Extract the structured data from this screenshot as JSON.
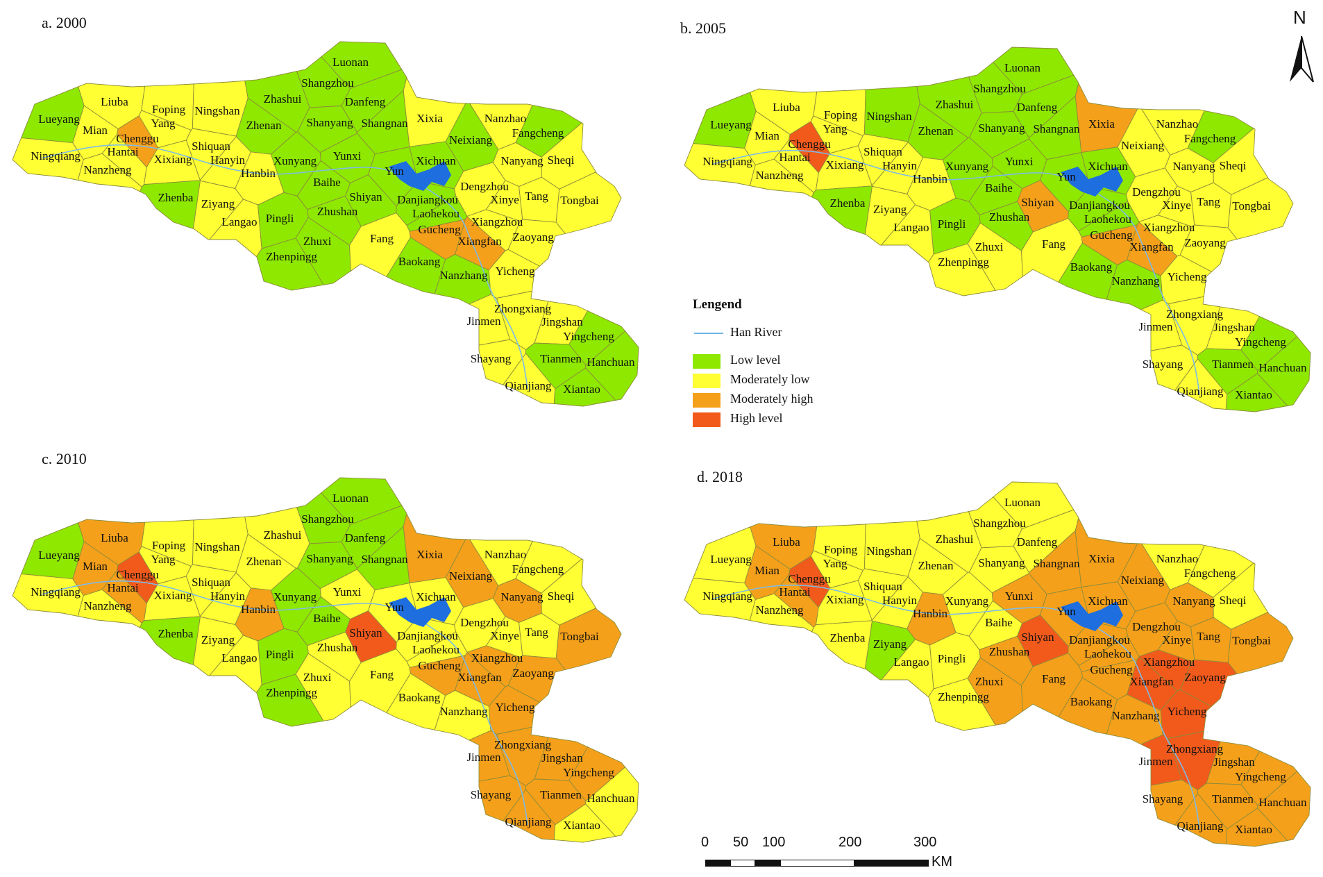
{
  "legend": {
    "title": "Lengend",
    "river_label": "Han River",
    "items": [
      {
        "label": "Low level",
        "color": "#8ee800"
      },
      {
        "label": "Moderately low",
        "color": "#ffff33"
      },
      {
        "label": "Moderately high",
        "color": "#f5a01a"
      },
      {
        "label": "High level",
        "color": "#f25a1c"
      }
    ]
  },
  "colors": {
    "border": "#8c8c3a",
    "river": "#7dbbe8",
    "reservoir": "#1e6ee0"
  },
  "north_arrow": {
    "label": "N"
  },
  "scale_bar": {
    "ticks": [
      "0",
      "50",
      "100",
      "200",
      "300"
    ],
    "unit": "KM"
  },
  "counties": [
    "Luonan",
    "Shangzhou",
    "Zhashui",
    "Danfeng",
    "Liuba",
    "Foping",
    "Ningshan",
    "Lueyang",
    "Mian",
    "Chenggu",
    "Yang",
    "Zhenan",
    "Shanyang",
    "Shangnan",
    "Xixia",
    "Nanzhao",
    "Fangcheng",
    "Neixiang",
    "Ningqiang",
    "Hantai",
    "Shiquan",
    "Xixiang",
    "Hanyin",
    "Yunxi",
    "Xichuan",
    "Nanyang",
    "Sheqi",
    "Nanzheng",
    "Hanbin",
    "Xunyang",
    "Baihe",
    "Yun",
    "Dengzhou",
    "Zhenba",
    "Ziyang",
    "Shiyan",
    "Danjiangkou",
    "Xinye",
    "Tang",
    "Tongbai",
    "Langao",
    "Pingli",
    "Zhushan",
    "Laohekou",
    "Xiangzhou",
    "Gucheng",
    "Zhuxi",
    "Fang",
    "Xiangfan",
    "Zaoyang",
    "Zhenpingg",
    "Baokang",
    "Nanzhang",
    "Yicheng",
    "Zhongxiang",
    "Jinmen",
    "Jingshan",
    "Yingcheng",
    "Shayang",
    "Tianmen",
    "Hanchuan",
    "Qianjiang",
    "Xiantao"
  ],
  "panels": [
    {
      "title": "a. 2000",
      "levels": {
        "Luonan": "L",
        "Shangzhou": "L",
        "Zhashui": "L",
        "Danfeng": "L",
        "Liuba": "ML",
        "Foping": "ML",
        "Ningshan": "ML",
        "Lueyang": "L",
        "Mian": "ML",
        "Chenggu": "MH",
        "Yang": "ML",
        "Zhenan": "L",
        "Shanyang": "L",
        "Shangnan": "L",
        "Xixia": "ML",
        "Nanzhao": "ML",
        "Fangcheng": "L",
        "Neixiang": "L",
        "Ningqiang": "ML",
        "Hantai": "ML",
        "Shiquan": "ML",
        "Xixiang": "ML",
        "Hanyin": "ML",
        "Yunxi": "L",
        "Xichuan": "L",
        "Nanyang": "ML",
        "Sheqi": "ML",
        "Nanzheng": "ML",
        "Hanbin": "ML",
        "Xunyang": "L",
        "Baihe": "L",
        "Yun": "L",
        "Dengzhou": "ML",
        "Zhenba": "L",
        "Ziyang": "ML",
        "Shiyan": "L",
        "Danjiangkou": "L",
        "Xinye": "ML",
        "Tang": "ML",
        "Tongbai": "ML",
        "Langao": "ML",
        "Pingli": "L",
        "Zhushan": "L",
        "Laohekou": "L",
        "Xiangzhou": "ML",
        "Gucheng": "MH",
        "Zhuxi": "L",
        "Fang": "ML",
        "Xiangfan": "MH",
        "Zaoyang": "ML",
        "Zhenpingg": "L",
        "Baokang": "L",
        "Nanzhang": "L",
        "Yicheng": "ML",
        "Zhongxiang": "ML",
        "Jinmen": "ML",
        "Jingshan": "ML",
        "Yingcheng": "L",
        "Shayang": "ML",
        "Tianmen": "L",
        "Hanchuan": "L",
        "Qianjiang": "ML",
        "Xiantao": "L"
      }
    },
    {
      "title": "b. 2005",
      "levels": {
        "Luonan": "L",
        "Shangzhou": "L",
        "Zhashui": "L",
        "Danfeng": "L",
        "Liuba": "ML",
        "Foping": "ML",
        "Ningshan": "L",
        "Lueyang": "L",
        "Mian": "ML",
        "Chenggu": "HL",
        "Yang": "ML",
        "Zhenan": "L",
        "Shanyang": "L",
        "Shangnan": "L",
        "Xixia": "MH",
        "Nanzhao": "ML",
        "Fangcheng": "L",
        "Neixiang": "ML",
        "Ningqiang": "ML",
        "Hantai": "ML",
        "Shiquan": "ML",
        "Xixiang": "ML",
        "Hanyin": "ML",
        "Yunxi": "L",
        "Xichuan": "L",
        "Nanyang": "ML",
        "Sheqi": "ML",
        "Nanzheng": "ML",
        "Hanbin": "ML",
        "Xunyang": "L",
        "Baihe": "L",
        "Yun": "L",
        "Dengzhou": "ML",
        "Zhenba": "L",
        "Ziyang": "ML",
        "Shiyan": "MH",
        "Danjiangkou": "L",
        "Xinye": "ML",
        "Tang": "ML",
        "Tongbai": "ML",
        "Langao": "ML",
        "Pingli": "L",
        "Zhushan": "L",
        "Laohekou": "L",
        "Xiangzhou": "ML",
        "Gucheng": "MH",
        "Zhuxi": "ML",
        "Fang": "ML",
        "Xiangfan": "MH",
        "Zaoyang": "ML",
        "Zhenpingg": "ML",
        "Baokang": "L",
        "Nanzhang": "L",
        "Yicheng": "ML",
        "Zhongxiang": "ML",
        "Jinmen": "ML",
        "Jingshan": "ML",
        "Yingcheng": "L",
        "Shayang": "ML",
        "Tianmen": "L",
        "Hanchuan": "L",
        "Qianjiang": "ML",
        "Xiantao": "L"
      }
    },
    {
      "title": "c. 2010",
      "levels": {
        "Luonan": "L",
        "Shangzhou": "L",
        "Zhashui": "ML",
        "Danfeng": "L",
        "Liuba": "MH",
        "Foping": "ML",
        "Ningshan": "ML",
        "Lueyang": "L",
        "Mian": "MH",
        "Chenggu": "HL",
        "Yang": "ML",
        "Zhenan": "ML",
        "Shanyang": "L",
        "Shangnan": "L",
        "Xixia": "MH",
        "Nanzhao": "ML",
        "Fangcheng": "ML",
        "Neixiang": "MH",
        "Ningqiang": "ML",
        "Hantai": "MH",
        "Shiquan": "ML",
        "Xixiang": "ML",
        "Hanyin": "ML",
        "Yunxi": "ML",
        "Xichuan": "ML",
        "Nanyang": "MH",
        "Sheqi": "ML",
        "Nanzheng": "ML",
        "Hanbin": "MH",
        "Xunyang": "L",
        "Baihe": "L",
        "Yun": "ML",
        "Dengzhou": "ML",
        "Zhenba": "L",
        "Ziyang": "ML",
        "Shiyan": "HL",
        "Danjiangkou": "ML",
        "Xinye": "ML",
        "Tang": "ML",
        "Tongbai": "MH",
        "Langao": "ML",
        "Pingli": "L",
        "Zhushan": "ML",
        "Laohekou": "ML",
        "Xiangzhou": "MH",
        "Gucheng": "MH",
        "Zhuxi": "ML",
        "Fang": "ML",
        "Xiangfan": "MH",
        "Zaoyang": "MH",
        "Zhenpingg": "L",
        "Baokang": "ML",
        "Nanzhang": "ML",
        "Yicheng": "MH",
        "Zhongxiang": "MH",
        "Jinmen": "MH",
        "Jingshan": "MH",
        "Yingcheng": "MH",
        "Shayang": "MH",
        "Tianmen": "MH",
        "Hanchuan": "ML",
        "Qianjiang": "MH",
        "Xiantao": "ML"
      }
    },
    {
      "title": "d. 2018",
      "levels": {
        "Luonan": "ML",
        "Shangzhou": "ML",
        "Zhashui": "ML",
        "Danfeng": "ML",
        "Liuba": "MH",
        "Foping": "ML",
        "Ningshan": "ML",
        "Lueyang": "ML",
        "Mian": "MH",
        "Chenggu": "HL",
        "Yang": "ML",
        "Zhenan": "ML",
        "Shanyang": "ML",
        "Shangnan": "MH",
        "Xixia": "MH",
        "Nanzhao": "ML",
        "Fangcheng": "ML",
        "Neixiang": "MH",
        "Ningqiang": "ML",
        "Hantai": "MH",
        "Shiquan": "ML",
        "Xixiang": "ML",
        "Hanyin": "ML",
        "Yunxi": "MH",
        "Xichuan": "MH",
        "Nanyang": "MH",
        "Sheqi": "ML",
        "Nanzheng": "ML",
        "Hanbin": "MH",
        "Xunyang": "ML",
        "Baihe": "ML",
        "Yun": "MH",
        "Dengzhou": "MH",
        "Zhenba": "ML",
        "Ziyang": "L",
        "Shiyan": "HL",
        "Danjiangkou": "MH",
        "Xinye": "MH",
        "Tang": "MH",
        "Tongbai": "MH",
        "Langao": "ML",
        "Pingli": "ML",
        "Zhushan": "MH",
        "Laohekou": "MH",
        "Xiangzhou": "HL",
        "Gucheng": "MH",
        "Zhuxi": "MH",
        "Fang": "MH",
        "Xiangfan": "HL",
        "Zaoyang": "HL",
        "Zhenpingg": "ML",
        "Baokang": "MH",
        "Nanzhang": "MH",
        "Yicheng": "HL",
        "Zhongxiang": "HL",
        "Jinmen": "HL",
        "Jingshan": "MH",
        "Yingcheng": "MH",
        "Shayang": "MH",
        "Tianmen": "MH",
        "Hanchuan": "MH",
        "Qianjiang": "MH",
        "Xiantao": "MH"
      }
    }
  ]
}
